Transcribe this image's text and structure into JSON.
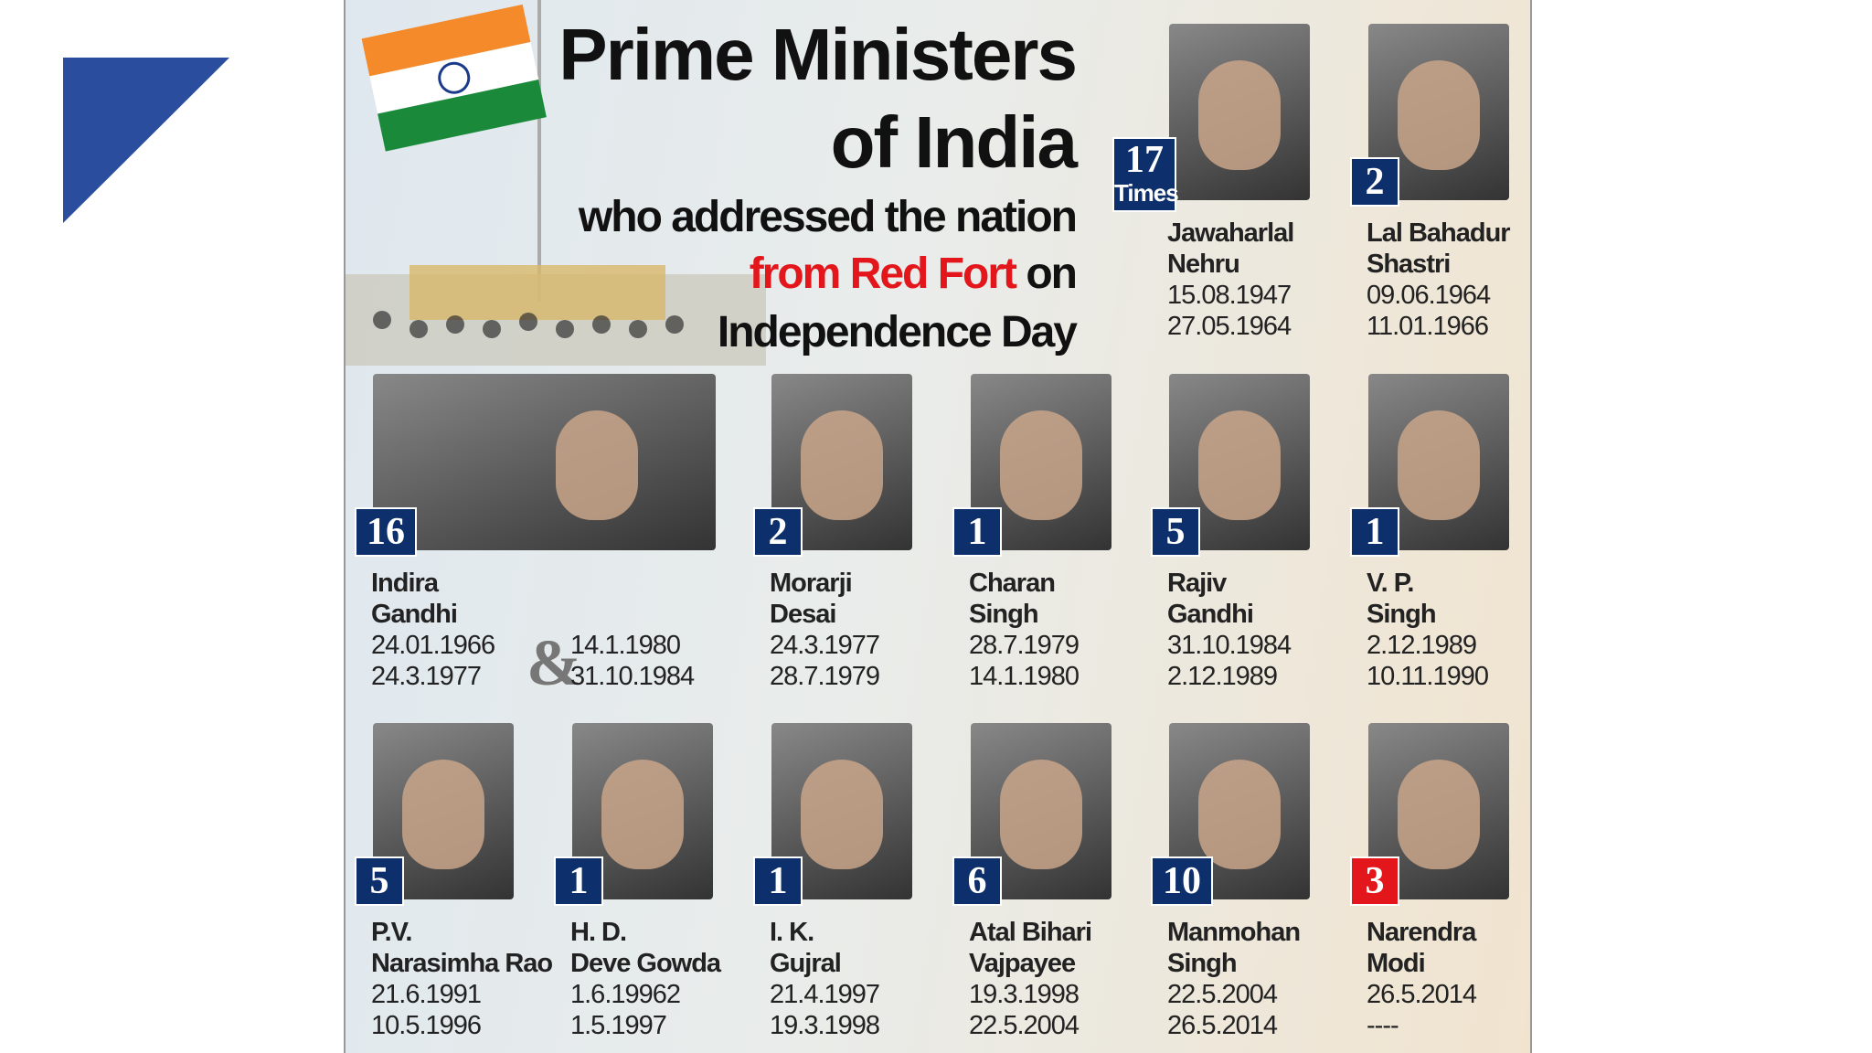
{
  "title": {
    "line1": "Prime Ministers",
    "line2": "of India",
    "line3": "who addressed the nation",
    "line4_red": "from Red Fort",
    "line4_rest": "on",
    "line5": "Independence Day"
  },
  "pms": [
    {
      "name": [
        "Jawaharlal",
        "Nehru"
      ],
      "count": 17,
      "count_suffix": "Times",
      "dates": [
        "15.08.1947",
        "27.05.1964"
      ]
    },
    {
      "name": [
        "Lal Bahadur",
        "Shastri"
      ],
      "count": 2,
      "dates": [
        "09.06.1964",
        "11.01.1966"
      ]
    },
    {
      "name": [
        "Indira",
        "Gandhi"
      ],
      "count": 16,
      "dates": [
        "24.01.1966",
        "24.3.1977"
      ],
      "separator": "&",
      "dates2": [
        "14.1.1980",
        "31.10.1984"
      ]
    },
    {
      "name": [
        "Morarji",
        "Desai"
      ],
      "count": 2,
      "dates": [
        "24.3.1977",
        "28.7.1979"
      ]
    },
    {
      "name": [
        "Charan",
        "Singh"
      ],
      "count": 1,
      "dates": [
        "28.7.1979",
        "14.1.1980"
      ]
    },
    {
      "name": [
        "Rajiv",
        "Gandhi"
      ],
      "count": 5,
      "dates": [
        "31.10.1984",
        "2.12.1989"
      ]
    },
    {
      "name": [
        "V. P.",
        "Singh"
      ],
      "count": 1,
      "dates": [
        "2.12.1989",
        "10.11.1990"
      ]
    },
    {
      "name": [
        "P.V.",
        "Narasimha Rao"
      ],
      "count": 5,
      "dates": [
        "21.6.1991",
        "10.5.1996"
      ]
    },
    {
      "name": [
        "H. D.",
        "Deve Gowda"
      ],
      "count": 1,
      "dates": [
        "1.6.19962",
        "1.5.1997"
      ]
    },
    {
      "name": [
        "I. K.",
        "Gujral"
      ],
      "count": 1,
      "dates": [
        "21.4.1997",
        "19.3.1998"
      ]
    },
    {
      "name": [
        "Atal Bihari",
        "Vajpayee"
      ],
      "count": 6,
      "dates": [
        "19.3.1998",
        "22.5.2004"
      ]
    },
    {
      "name": [
        "Manmohan",
        "Singh"
      ],
      "count": 10,
      "dates": [
        "22.5.2004",
        "26.5.2014"
      ]
    },
    {
      "name": [
        "Narendra",
        "Modi"
      ],
      "count": 3,
      "dates": [
        "26.5.2014",
        "----"
      ],
      "badge_color": "#e3161b"
    }
  ]
}
